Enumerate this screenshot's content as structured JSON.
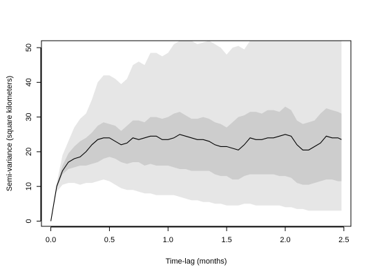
{
  "chart_data": {
    "type": "area",
    "title": "",
    "xlabel": "Time-lag (months)",
    "ylabel": "Semi-variance (square kilometers)",
    "xlim": [
      -0.08,
      2.56
    ],
    "ylim": [
      -1.5,
      52
    ],
    "xticks": [
      0.0,
      0.5,
      1.0,
      1.5,
      2.0,
      2.5
    ],
    "xtick_labels": [
      "0.0",
      "0.5",
      "1.0",
      "1.5",
      "2.0",
      "2.5"
    ],
    "yticks": [
      0,
      10,
      20,
      30,
      40,
      50
    ],
    "ytick_labels": [
      "0",
      "10",
      "20",
      "30",
      "40",
      "50"
    ],
    "grid": false,
    "legend": "none",
    "colors": {
      "outer_band": "#e6e6e6",
      "inner_band": "#cdcdcd",
      "line": "#000000"
    },
    "x": [
      0.0,
      0.05,
      0.1,
      0.15,
      0.2,
      0.25,
      0.3,
      0.35,
      0.4,
      0.45,
      0.5,
      0.55,
      0.6,
      0.65,
      0.7,
      0.75,
      0.8,
      0.85,
      0.9,
      0.95,
      1.0,
      1.05,
      1.1,
      1.15,
      1.2,
      1.25,
      1.3,
      1.35,
      1.4,
      1.45,
      1.5,
      1.55,
      1.6,
      1.65,
      1.7,
      1.75,
      1.8,
      1.85,
      1.9,
      1.95,
      2.0,
      2.05,
      2.1,
      2.15,
      2.2,
      2.25,
      2.3,
      2.35,
      2.4,
      2.45,
      2.48
    ],
    "series": [
      {
        "role": "outer_band",
        "upper": [
          0,
          11,
          19,
          23,
          27,
          29.5,
          31,
          35,
          40,
          42,
          42,
          41,
          39.5,
          41,
          45,
          46,
          45,
          48.5,
          48.5,
          47.5,
          48.5,
          51,
          53,
          52.5,
          52,
          51,
          51.5,
          52,
          51,
          50,
          48,
          50,
          50.5,
          49.5,
          52,
          52.5,
          52.5,
          52.5,
          52.5,
          52.5,
          52.5,
          52.5,
          52.5,
          52.5,
          52.5,
          52.5,
          52.5,
          52.5,
          52.5,
          52.5,
          52.5
        ],
        "lower": [
          0,
          8.5,
          10.5,
          11,
          11,
          10.5,
          11,
          11,
          11.5,
          12,
          11.5,
          10.5,
          9.5,
          9,
          9,
          8.5,
          8,
          8,
          7.5,
          7.5,
          7.5,
          7.5,
          7,
          6.5,
          6,
          6,
          5.5,
          5.5,
          5,
          5,
          4.5,
          4.5,
          4.5,
          5,
          5,
          4.5,
          4.5,
          4.5,
          4.5,
          4.5,
          4,
          4,
          3.5,
          3.5,
          3,
          3,
          3,
          3,
          3,
          3,
          3
        ]
      },
      {
        "role": "inner_band",
        "upper": [
          0,
          10.5,
          16,
          19.5,
          21.5,
          23,
          24,
          25.5,
          27.5,
          28.5,
          28,
          27.5,
          26,
          27.5,
          29,
          29,
          28.5,
          30,
          30,
          29.5,
          30,
          31,
          31.5,
          30.5,
          29.5,
          29.5,
          30,
          29.5,
          28.5,
          28,
          27,
          28.5,
          30,
          30.5,
          31.5,
          31.5,
          31,
          32,
          32,
          31.5,
          33,
          32,
          29,
          28,
          28.5,
          29,
          31,
          32.5,
          32,
          31.5,
          31
        ],
        "lower": [
          0,
          9.5,
          13.5,
          15,
          15.5,
          16,
          16,
          16.5,
          17,
          18,
          18.5,
          18,
          17,
          16.5,
          17,
          17,
          16,
          16.5,
          16,
          16,
          16,
          15.5,
          15,
          15,
          14.5,
          14.5,
          14.5,
          14.5,
          13.5,
          13,
          13,
          12,
          12,
          13,
          13.5,
          13.5,
          13.5,
          13.5,
          13.5,
          13,
          13,
          12.5,
          11,
          10.5,
          10.5,
          11,
          11.5,
          12,
          12,
          11.5,
          11.5
        ]
      },
      {
        "role": "line",
        "values": [
          0,
          10,
          14.5,
          17,
          18,
          18.5,
          20,
          22,
          23.5,
          24,
          24,
          23,
          22,
          22.5,
          24,
          23.5,
          24,
          24.5,
          24.5,
          23.5,
          23.5,
          24,
          25,
          24.5,
          24,
          23.5,
          23.5,
          23,
          22,
          21.5,
          21.5,
          21,
          20.5,
          22,
          24,
          23.5,
          23.5,
          24,
          24,
          24.5,
          25,
          24.5,
          22,
          20.5,
          20.5,
          21.5,
          22.5,
          24.5,
          24,
          24,
          23.5
        ]
      }
    ]
  }
}
